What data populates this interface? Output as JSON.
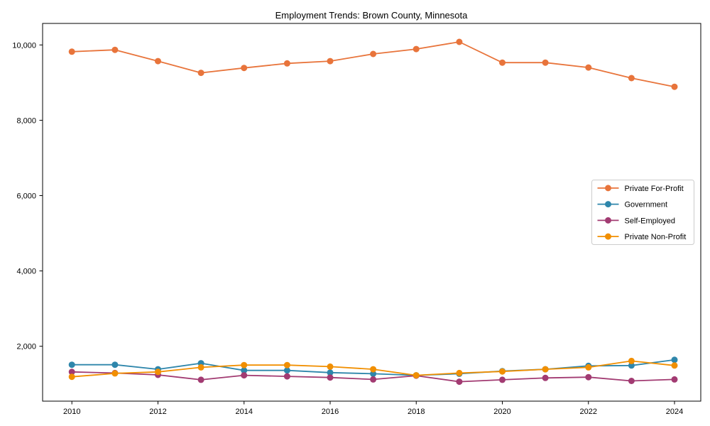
{
  "chart_data": {
    "type": "line",
    "title": "Employment Trends: Brown County, Minnesota",
    "xlabel": "",
    "ylabel": "",
    "grid": false,
    "legend_position": "center right",
    "background_color": "#ffffff",
    "axis_color": "#000000",
    "legend_border_color": "#cccccc",
    "x": [
      2010,
      2011,
      2012,
      2013,
      2014,
      2015,
      2016,
      2017,
      2018,
      2019,
      2020,
      2021,
      2022,
      2023,
      2024
    ],
    "series": [
      {
        "name": "Private For-Profit",
        "color": "#E8743B",
        "values": [
          9820,
          9870,
          9570,
          9260,
          9390,
          9510,
          9570,
          9760,
          9890,
          10080,
          9530,
          9530,
          9400,
          9120,
          8890
        ]
      },
      {
        "name": "Government",
        "color": "#2E86AB",
        "values": [
          1510,
          1510,
          1390,
          1550,
          1360,
          1360,
          1300,
          1270,
          1230,
          1270,
          1340,
          1390,
          1480,
          1490,
          1640
        ]
      },
      {
        "name": "Self-Employed",
        "color": "#A23B72",
        "values": [
          1320,
          1290,
          1240,
          1110,
          1230,
          1200,
          1170,
          1120,
          1220,
          1060,
          1110,
          1160,
          1180,
          1080,
          1120
        ]
      },
      {
        "name": "Private Non-Profit",
        "color": "#F18F01",
        "values": [
          1190,
          1280,
          1320,
          1440,
          1500,
          1500,
          1460,
          1390,
          1230,
          1290,
          1330,
          1390,
          1440,
          1610,
          1490
        ]
      }
    ],
    "xticks": [
      2010,
      2012,
      2014,
      2016,
      2018,
      2020,
      2022,
      2024
    ],
    "xtick_labels": [
      "2010",
      "2012",
      "2014",
      "2016",
      "2018",
      "2020",
      "2022",
      "2024"
    ],
    "yticks": [
      2000,
      4000,
      6000,
      8000,
      10000
    ],
    "ytick_labels": [
      "2,000",
      "4,000",
      "6,000",
      "8,000",
      "10,000"
    ],
    "xlim": [
      2009.32,
      2024.61
    ],
    "ylim": [
      543,
      10571
    ]
  }
}
